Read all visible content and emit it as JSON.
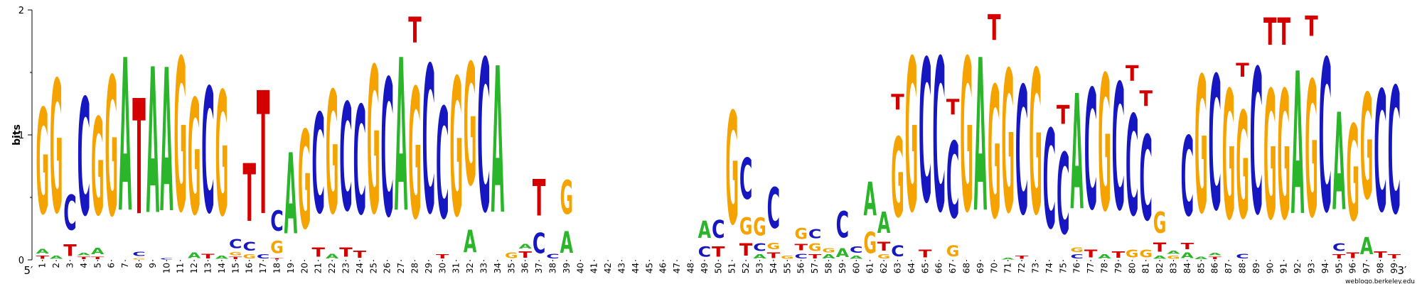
{
  "chart_data": {
    "type": "sequence-logo",
    "ylabel": "bits",
    "ylim": [
      0,
      2
    ],
    "yticks": [
      "0",
      "1",
      "2"
    ],
    "start_label": "5′",
    "end_label": "3′",
    "credit": "weblogo.berkeley.edu",
    "colors": {
      "A": "#2bb52b",
      "C": "#1717c2",
      "G": "#f5a300",
      "T": "#d40000"
    },
    "positions": [
      {
        "pos": 1,
        "letters": [
          [
            "T",
            0.04
          ],
          [
            "A",
            0.06
          ],
          [
            "G",
            1.35
          ]
        ]
      },
      {
        "pos": 2,
        "letters": [
          [
            "A",
            0.04
          ],
          [
            "G",
            1.7
          ]
        ]
      },
      {
        "pos": 3,
        "letters": [
          [
            "T",
            0.15
          ],
          [
            "C",
            0.45
          ]
        ]
      },
      {
        "pos": 4,
        "letters": [
          [
            "T",
            0.03
          ],
          [
            "A",
            0.03
          ],
          [
            "C",
            1.5
          ]
        ]
      },
      {
        "pos": 5,
        "letters": [
          [
            "T",
            0.03
          ],
          [
            "A",
            0.08
          ],
          [
            "G",
            1.25
          ]
        ]
      },
      {
        "pos": 6,
        "letters": [
          [
            "G",
            1.78
          ]
        ]
      },
      {
        "pos": 7,
        "letters": [
          [
            "A",
            1.96
          ]
        ]
      },
      {
        "pos": 8,
        "letters": [
          [
            "G",
            0.02
          ],
          [
            "C",
            0.05
          ],
          [
            "T",
            1.48
          ]
        ]
      },
      {
        "pos": 9,
        "letters": [
          [
            "A",
            1.87
          ]
        ]
      },
      {
        "pos": 10,
        "letters": [
          [
            "C",
            0.02
          ],
          [
            "A",
            1.84
          ]
        ]
      },
      {
        "pos": 11,
        "letters": [
          [
            "G",
            1.96
          ]
        ]
      },
      {
        "pos": 12,
        "letters": [
          [
            "A",
            0.07
          ],
          [
            "G",
            1.48
          ]
        ]
      },
      {
        "pos": 13,
        "letters": [
          [
            "T",
            0.06
          ],
          [
            "C",
            1.6
          ]
        ]
      },
      {
        "pos": 14,
        "letters": [
          [
            "A",
            0.04
          ],
          [
            "G",
            1.59
          ]
        ]
      },
      {
        "pos": 15,
        "letters": [
          [
            "T",
            0.03
          ],
          [
            "G",
            0.04
          ],
          [
            "C",
            0.12
          ]
        ]
      },
      {
        "pos": 16,
        "letters": [
          [
            "G",
            0.05
          ],
          [
            "C",
            0.11
          ],
          [
            "T",
            0.74
          ]
        ]
      },
      {
        "pos": 17,
        "letters": [
          [
            "C",
            0.05
          ],
          [
            "T",
            1.58
          ]
        ]
      },
      {
        "pos": 18,
        "letters": [
          [
            "T",
            0.02
          ],
          [
            "G",
            0.16
          ],
          [
            "C",
            0.26
          ]
        ]
      },
      {
        "pos": 19,
        "letters": [
          [
            "A",
            1.04
          ]
        ]
      },
      {
        "pos": 20,
        "letters": [
          [
            "G",
            1.26
          ]
        ]
      },
      {
        "pos": 21,
        "letters": [
          [
            "T",
            0.12
          ],
          [
            "C",
            1.28
          ]
        ]
      },
      {
        "pos": 22,
        "letters": [
          [
            "A",
            0.06
          ],
          [
            "G",
            1.57
          ]
        ]
      },
      {
        "pos": 23,
        "letters": [
          [
            "T",
            0.12
          ],
          [
            "C",
            1.38
          ]
        ]
      },
      {
        "pos": 24,
        "letters": [
          [
            "T",
            0.09
          ],
          [
            "C",
            1.39
          ]
        ]
      },
      {
        "pos": 25,
        "letters": [
          [
            "G",
            1.88
          ]
        ]
      },
      {
        "pos": 26,
        "letters": [
          [
            "C",
            1.76
          ]
        ]
      },
      {
        "pos": 27,
        "letters": [
          [
            "A",
            1.96
          ]
        ]
      },
      {
        "pos": 28,
        "letters": [
          [
            "G",
            1.67
          ],
          [
            "T",
            0.33
          ]
        ]
      },
      {
        "pos": 29,
        "letters": [
          [
            "C",
            1.89
          ]
        ]
      },
      {
        "pos": 30,
        "letters": [
          [
            "T",
            0.05
          ],
          [
            "C",
            1.42
          ]
        ]
      },
      {
        "pos": 31,
        "letters": [
          [
            "G",
            1.77
          ]
        ]
      },
      {
        "pos": 32,
        "letters": [
          [
            "A",
            0.29
          ],
          [
            "G",
            1.56
          ]
        ]
      },
      {
        "pos": 33,
        "letters": [
          [
            "C",
            1.95
          ]
        ]
      },
      {
        "pos": 34,
        "letters": [
          [
            "A",
            1.88
          ]
        ]
      },
      {
        "pos": 35,
        "letters": [
          [
            "G",
            0.07
          ]
        ]
      },
      {
        "pos": 36,
        "letters": [
          [
            "T",
            0.08
          ],
          [
            "A",
            0.06
          ]
        ]
      },
      {
        "pos": 37,
        "letters": [
          [
            "C",
            0.26
          ],
          [
            "T",
            0.47
          ]
        ]
      },
      {
        "pos": 38,
        "letters": [
          [
            "C",
            0.06
          ]
        ]
      },
      {
        "pos": 39,
        "letters": [
          [
            "A",
            0.28
          ],
          [
            "G",
            0.43
          ]
        ]
      },
      {
        "pos": 40,
        "letters": []
      },
      {
        "pos": 41,
        "letters": []
      },
      {
        "pos": 42,
        "letters": []
      },
      {
        "pos": 43,
        "letters": []
      },
      {
        "pos": 44,
        "letters": []
      },
      {
        "pos": 45,
        "letters": []
      },
      {
        "pos": 46,
        "letters": []
      },
      {
        "pos": 47,
        "letters": []
      },
      {
        "pos": 48,
        "letters": []
      },
      {
        "pos": 49,
        "letters": [
          [
            "C",
            0.13
          ],
          [
            "A",
            0.22
          ]
        ]
      },
      {
        "pos": 50,
        "letters": [
          [
            "T",
            0.13
          ],
          [
            "C",
            0.23
          ]
        ]
      },
      {
        "pos": 51,
        "letters": [
          [
            "G",
            1.44
          ]
        ]
      },
      {
        "pos": 52,
        "letters": [
          [
            "T",
            0.16
          ],
          [
            "G",
            0.22
          ],
          [
            "C",
            0.53
          ]
        ]
      },
      {
        "pos": 53,
        "letters": [
          [
            "A",
            0.05
          ],
          [
            "C",
            0.1
          ],
          [
            "G",
            0.23
          ]
        ]
      },
      {
        "pos": 54,
        "letters": [
          [
            "T",
            0.07
          ],
          [
            "G",
            0.08
          ],
          [
            "C",
            0.52
          ]
        ]
      },
      {
        "pos": 55,
        "letters": [
          [
            "G",
            0.04
          ]
        ]
      },
      {
        "pos": 56,
        "letters": [
          [
            "C",
            0.06
          ],
          [
            "T",
            0.08
          ],
          [
            "G",
            0.14
          ]
        ]
      },
      {
        "pos": 57,
        "letters": [
          [
            "T",
            0.05
          ],
          [
            "G",
            0.1
          ],
          [
            "C",
            0.12
          ]
        ]
      },
      {
        "pos": 58,
        "letters": [
          [
            "A",
            0.05
          ],
          [
            "G",
            0.05
          ]
        ]
      },
      {
        "pos": 59,
        "letters": [
          [
            "A",
            0.11
          ],
          [
            "C",
            0.34
          ]
        ]
      },
      {
        "pos": 60,
        "letters": [
          [
            "A",
            0.04
          ],
          [
            "C",
            0.08
          ]
        ]
      },
      {
        "pos": 61,
        "letters": [
          [
            "G",
            0.27
          ],
          [
            "A",
            0.43
          ]
        ]
      },
      {
        "pos": 62,
        "letters": [
          [
            "G",
            0.05
          ],
          [
            "T",
            0.11
          ],
          [
            "A",
            0.27
          ]
        ]
      },
      {
        "pos": 63,
        "letters": [
          [
            "C",
            0.14
          ],
          [
            "G",
            1.02
          ],
          [
            "T",
            0.2
          ]
        ]
      },
      {
        "pos": 64,
        "letters": [
          [
            "G",
            1.96
          ]
        ]
      },
      {
        "pos": 65,
        "letters": [
          [
            "T",
            0.1
          ],
          [
            "C",
            1.83
          ]
        ]
      },
      {
        "pos": 66,
        "letters": [
          [
            "C",
            1.96
          ]
        ]
      },
      {
        "pos": 67,
        "letters": [
          [
            "G",
            0.14
          ],
          [
            "C",
            0.98
          ],
          [
            "T",
            0.2
          ]
        ]
      },
      {
        "pos": 68,
        "letters": [
          [
            "G",
            1.96
          ]
        ]
      },
      {
        "pos": 69,
        "letters": [
          [
            "A",
            1.96
          ]
        ]
      },
      {
        "pos": 70,
        "letters": [
          [
            "G",
            1.69
          ],
          [
            "T",
            0.33
          ]
        ]
      },
      {
        "pos": 71,
        "letters": [
          [
            "A",
            0.02
          ],
          [
            "G",
            1.82
          ]
        ]
      },
      {
        "pos": 72,
        "letters": [
          [
            "T",
            0.04
          ],
          [
            "C",
            1.64
          ]
        ]
      },
      {
        "pos": 73,
        "letters": [
          [
            "G",
            1.85
          ]
        ]
      },
      {
        "pos": 74,
        "letters": [
          [
            "C",
            1.27
          ]
        ]
      },
      {
        "pos": 75,
        "letters": [
          [
            "C",
            1.04
          ],
          [
            "T",
            0.24
          ]
        ]
      },
      {
        "pos": 76,
        "letters": [
          [
            "C",
            0.05
          ],
          [
            "G",
            0.06
          ],
          [
            "A",
            1.48
          ]
        ]
      },
      {
        "pos": 77,
        "letters": [
          [
            "T",
            0.1
          ],
          [
            "C",
            1.54
          ]
        ]
      },
      {
        "pos": 78,
        "letters": [
          [
            "A",
            0.05
          ],
          [
            "G",
            1.74
          ]
        ]
      },
      {
        "pos": 79,
        "letters": [
          [
            "T",
            0.08
          ],
          [
            "C",
            1.62
          ]
        ]
      },
      {
        "pos": 80,
        "letters": [
          [
            "G",
            0.1
          ],
          [
            "C",
            1.29
          ],
          [
            "T",
            0.2
          ]
        ]
      },
      {
        "pos": 81,
        "letters": [
          [
            "G",
            0.1
          ],
          [
            "C",
            1.09
          ],
          [
            "T",
            0.2
          ]
        ]
      },
      {
        "pos": 82,
        "letters": [
          [
            "A",
            0.04
          ],
          [
            "T",
            0.12
          ],
          [
            "G",
            0.27
          ]
        ]
      },
      {
        "pos": 83,
        "letters": [
          [
            "G",
            0.04
          ],
          [
            "A",
            0.04
          ]
        ]
      },
      {
        "pos": 84,
        "letters": [
          [
            "A",
            0.07
          ],
          [
            "T",
            0.08
          ],
          [
            "C",
            1.02
          ]
        ]
      },
      {
        "pos": 85,
        "letters": [
          [
            "A",
            0.03
          ],
          [
            "G",
            1.75
          ]
        ]
      },
      {
        "pos": 86,
        "letters": [
          [
            "T",
            0.03
          ],
          [
            "A",
            0.03
          ],
          [
            "C",
            1.72
          ]
        ]
      },
      {
        "pos": 87,
        "letters": [
          [
            "G",
            1.65
          ]
        ]
      },
      {
        "pos": 88,
        "letters": [
          [
            "C",
            0.06
          ],
          [
            "G",
            1.37
          ],
          [
            "T",
            0.18
          ]
        ]
      },
      {
        "pos": 89,
        "letters": [
          [
            "C",
            1.86
          ]
        ]
      },
      {
        "pos": 90,
        "letters": [
          [
            "G",
            1.65
          ],
          [
            "T",
            0.35
          ]
        ]
      },
      {
        "pos": 91,
        "letters": [
          [
            "G",
            1.65
          ],
          [
            "T",
            0.35
          ]
        ]
      },
      {
        "pos": 92,
        "letters": [
          [
            "A",
            1.83
          ]
        ]
      },
      {
        "pos": 93,
        "letters": [
          [
            "G",
            1.74
          ],
          [
            "T",
            0.26
          ]
        ]
      },
      {
        "pos": 94,
        "letters": [
          [
            "C",
            1.95
          ]
        ]
      },
      {
        "pos": 95,
        "letters": [
          [
            "T",
            0.05
          ],
          [
            "C",
            0.1
          ],
          [
            "A",
            1.25
          ]
        ]
      },
      {
        "pos": 96,
        "letters": [
          [
            "T",
            0.07
          ],
          [
            "G",
            1.23
          ]
        ]
      },
      {
        "pos": 97,
        "letters": [
          [
            "A",
            0.22
          ],
          [
            "G",
            1.35
          ]
        ]
      },
      {
        "pos": 98,
        "letters": [
          [
            "T",
            0.08
          ],
          [
            "C",
            1.55
          ]
        ]
      },
      {
        "pos": 99,
        "letters": [
          [
            "T",
            0.05
          ],
          [
            "C",
            1.62
          ]
        ]
      }
    ]
  }
}
